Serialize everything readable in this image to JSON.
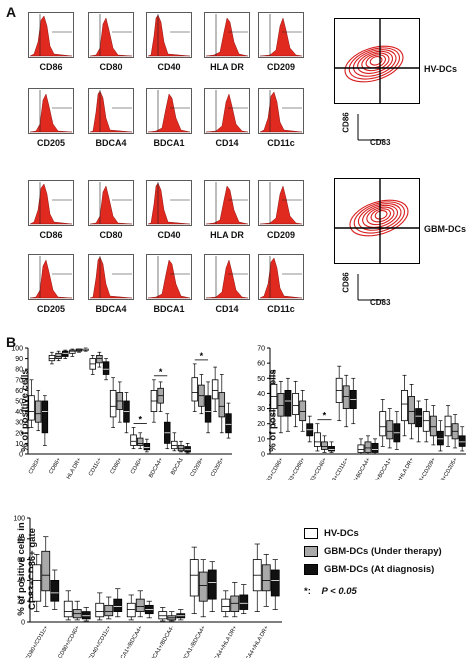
{
  "panel_a": {
    "letter": "A",
    "groups": [
      {
        "name": "HV-DCs",
        "flow_axes": {
          "y": "CD86",
          "x": "CD83"
        },
        "rows": [
          [
            "CD86",
            "CD80",
            "CD40",
            "HLA DR",
            "CD209"
          ],
          [
            "CD205",
            "BDCA4",
            "BDCA1",
            "CD14",
            "CD11c"
          ]
        ]
      },
      {
        "name": "GBM-DCs",
        "flow_axes": {
          "y": "CD86",
          "x": "CD83"
        },
        "rows": [
          [
            "CD86",
            "CD80",
            "CD40",
            "HLA DR",
            "CD209"
          ],
          [
            "CD205",
            "BDCA4",
            "BDCA1",
            "CD14",
            "CD11c"
          ]
        ]
      }
    ]
  },
  "panel_b": {
    "letter": "B",
    "legend": {
      "hv": "HV-DCs",
      "therapy": "GBM-DCs (Under therapy)",
      "diagnosis": "GBM-DCs (At diagnosis)",
      "sig_symbol": "*:",
      "sig_text": "P < 0.05"
    },
    "colors": {
      "hv": "#ffffff",
      "therapy": "#a9a9a9",
      "diagnosis": "#111111",
      "stroke": "#000000"
    }
  },
  "chart_data": [
    {
      "type": "box",
      "ylabel": "% of positive cells",
      "ylim": [
        0,
        100
      ],
      "yticks": [
        0,
        10,
        20,
        30,
        40,
        50,
        60,
        70,
        80,
        90,
        100
      ],
      "categories": [
        "CD83+",
        "CD86+",
        "HLA DR+",
        "CD11c+",
        "CD80+",
        "CD40+",
        "BDCA4+",
        "BDCA1",
        "CD209+",
        "CD205+"
      ],
      "significant": [
        "CD40+",
        "BDCA4+",
        "CD209+"
      ],
      "series": [
        {
          "name": "HV-DCs",
          "boxes": [
            [
              25,
              32,
              40,
              55,
              70
            ],
            [
              85,
              88,
              90,
              93,
              96
            ],
            [
              92,
              95,
              97,
              98,
              99
            ],
            [
              75,
              80,
              85,
              90,
              93
            ],
            [
              25,
              35,
              45,
              60,
              72
            ],
            [
              5,
              8,
              12,
              18,
              25
            ],
            [
              30,
              40,
              50,
              60,
              70
            ],
            [
              3,
              5,
              8,
              12,
              20
            ],
            [
              40,
              50,
              58,
              72,
              85
            ],
            [
              40,
              52,
              60,
              70,
              82
            ]
          ]
        },
        {
          "name": "GBM-DCs (Under therapy)",
          "boxes": [
            [
              22,
              30,
              38,
              50,
              60
            ],
            [
              88,
              90,
              92,
              95,
              97
            ],
            [
              96,
              97,
              98,
              99,
              99
            ],
            [
              82,
              86,
              90,
              93,
              96
            ],
            [
              30,
              42,
              50,
              58,
              68
            ],
            [
              5,
              8,
              10,
              15,
              20
            ],
            [
              40,
              48,
              55,
              62,
              68
            ],
            [
              2,
              3,
              5,
              8,
              12
            ],
            [
              38,
              45,
              55,
              65,
              75
            ],
            [
              20,
              35,
              45,
              58,
              75
            ]
          ]
        },
        {
          "name": "GBM-DCs (At diagnosis)",
          "boxes": [
            [
              8,
              20,
              40,
              50,
              55
            ],
            [
              90,
              92,
              95,
              97,
              98
            ],
            [
              97,
              98,
              99,
              99,
              100
            ],
            [
              70,
              75,
              80,
              87,
              90
            ],
            [
              20,
              30,
              40,
              50,
              58
            ],
            [
              2,
              4,
              6,
              10,
              14
            ],
            [
              5,
              10,
              20,
              30,
              38
            ],
            [
              1,
              2,
              4,
              7,
              10
            ],
            [
              20,
              30,
              40,
              55,
              68
            ],
            [
              15,
              20,
              28,
              38,
              48
            ]
          ]
        }
      ]
    },
    {
      "type": "box",
      "ylabel": "% of positive cells",
      "ylim": [
        0,
        70
      ],
      "yticks": [
        0,
        10,
        20,
        30,
        40,
        50,
        60,
        70
      ],
      "categories": [
        "CD83+CD86+",
        "CD83+CD80+",
        "CD83+CD40+",
        "CD83+CD11c+",
        "CD83+BDCA4+",
        "CD83+BDCA1+",
        "CD83+HLA DR+",
        "CD83+CD209+",
        "CD83+CD205+"
      ],
      "significant": [
        "CD83+CD40+"
      ],
      "series": [
        {
          "name": "HV-DCs",
          "boxes": [
            [
              20,
              30,
              38,
              46,
              55
            ],
            [
              18,
              26,
              32,
              40,
              48
            ],
            [
              2,
              5,
              8,
              14,
              20
            ],
            [
              22,
              34,
              42,
              50,
              58
            ],
            [
              0,
              1,
              3,
              6,
              10
            ],
            [
              5,
              12,
              18,
              28,
              36
            ],
            [
              12,
              22,
              33,
              42,
              52
            ],
            [
              8,
              15,
              22,
              28,
              36
            ],
            [
              5,
              12,
              18,
              25,
              32
            ]
          ]
        },
        {
          "name": "GBM-DCs (Under therapy)",
          "boxes": [
            [
              14,
              25,
              32,
              40,
              48
            ],
            [
              15,
              22,
              28,
              35,
              42
            ],
            [
              1,
              3,
              5,
              8,
              12
            ],
            [
              18,
              30,
              38,
              45,
              52
            ],
            [
              0,
              1,
              4,
              8,
              12
            ],
            [
              4,
              10,
              15,
              22,
              30
            ],
            [
              10,
              20,
              28,
              38,
              46
            ],
            [
              6,
              12,
              18,
              25,
              32
            ],
            [
              4,
              10,
              15,
              20,
              26
            ]
          ]
        },
        {
          "name": "GBM-DCs (At diagnosis)",
          "boxes": [
            [
              15,
              25,
              35,
              42,
              50
            ],
            [
              8,
              12,
              16,
              20,
              25
            ],
            [
              1,
              2,
              3,
              5,
              8
            ],
            [
              20,
              30,
              36,
              42,
              50
            ],
            [
              0,
              1,
              3,
              7,
              10
            ],
            [
              3,
              8,
              14,
              20,
              28
            ],
            [
              8,
              18,
              25,
              30,
              35
            ],
            [
              2,
              6,
              10,
              15,
              22
            ],
            [
              2,
              5,
              8,
              12,
              18
            ]
          ]
        }
      ]
    },
    {
      "type": "box",
      "ylabel": "% of positive cells in CD83+CD86+ gate",
      "ylim": [
        0,
        100
      ],
      "yticks": [
        0,
        20,
        40,
        60,
        80,
        100
      ],
      "categories": [
        "CD80+/CD11c+",
        "CD80+/CD40+",
        "CD40+/CD11c+",
        "BDCA1+/BDCA4+",
        "BDCA1+/BDCA4-",
        "BDCA1-/BDCA4+",
        "BDCA4+/HLA DR+",
        "BDCA4+/HLA DR+"
      ],
      "significant": [],
      "series": [
        {
          "name": "HV-DCs",
          "boxes": [
            [
              10,
              20,
              40,
              55,
              65
            ],
            [
              2,
              5,
              10,
              20,
              30
            ],
            [
              2,
              5,
              10,
              18,
              28
            ],
            [
              2,
              5,
              12,
              18,
              26
            ],
            [
              1,
              3,
              6,
              10,
              14
            ],
            [
              8,
              25,
              45,
              60,
              72
            ],
            [
              5,
              10,
              15,
              22,
              30
            ],
            [
              10,
              30,
              45,
              60,
              75
            ]
          ]
        },
        {
          "name": "GBM-DCs (Under therapy)",
          "boxes": [
            [
              15,
              30,
              45,
              68,
              82
            ],
            [
              2,
              4,
              8,
              12,
              20
            ],
            [
              3,
              6,
              10,
              16,
              24
            ],
            [
              5,
              10,
              15,
              22,
              30
            ],
            [
              1,
              2,
              4,
              6,
              10
            ],
            [
              5,
              20,
              35,
              48,
              60
            ],
            [
              5,
              10,
              18,
              25,
              38
            ],
            [
              15,
              30,
              40,
              55,
              65
            ]
          ]
        },
        {
          "name": "GBM-DCs (At diagnosis)",
          "boxes": [
            [
              12,
              20,
              28,
              40,
              50
            ],
            [
              1,
              3,
              6,
              10,
              14
            ],
            [
              5,
              10,
              15,
              22,
              32
            ],
            [
              4,
              8,
              12,
              16,
              20
            ],
            [
              2,
              4,
              6,
              8,
              12
            ],
            [
              10,
              22,
              38,
              50,
              58
            ],
            [
              8,
              12,
              18,
              26,
              36
            ],
            [
              12,
              25,
              40,
              50,
              60
            ]
          ]
        }
      ]
    }
  ]
}
